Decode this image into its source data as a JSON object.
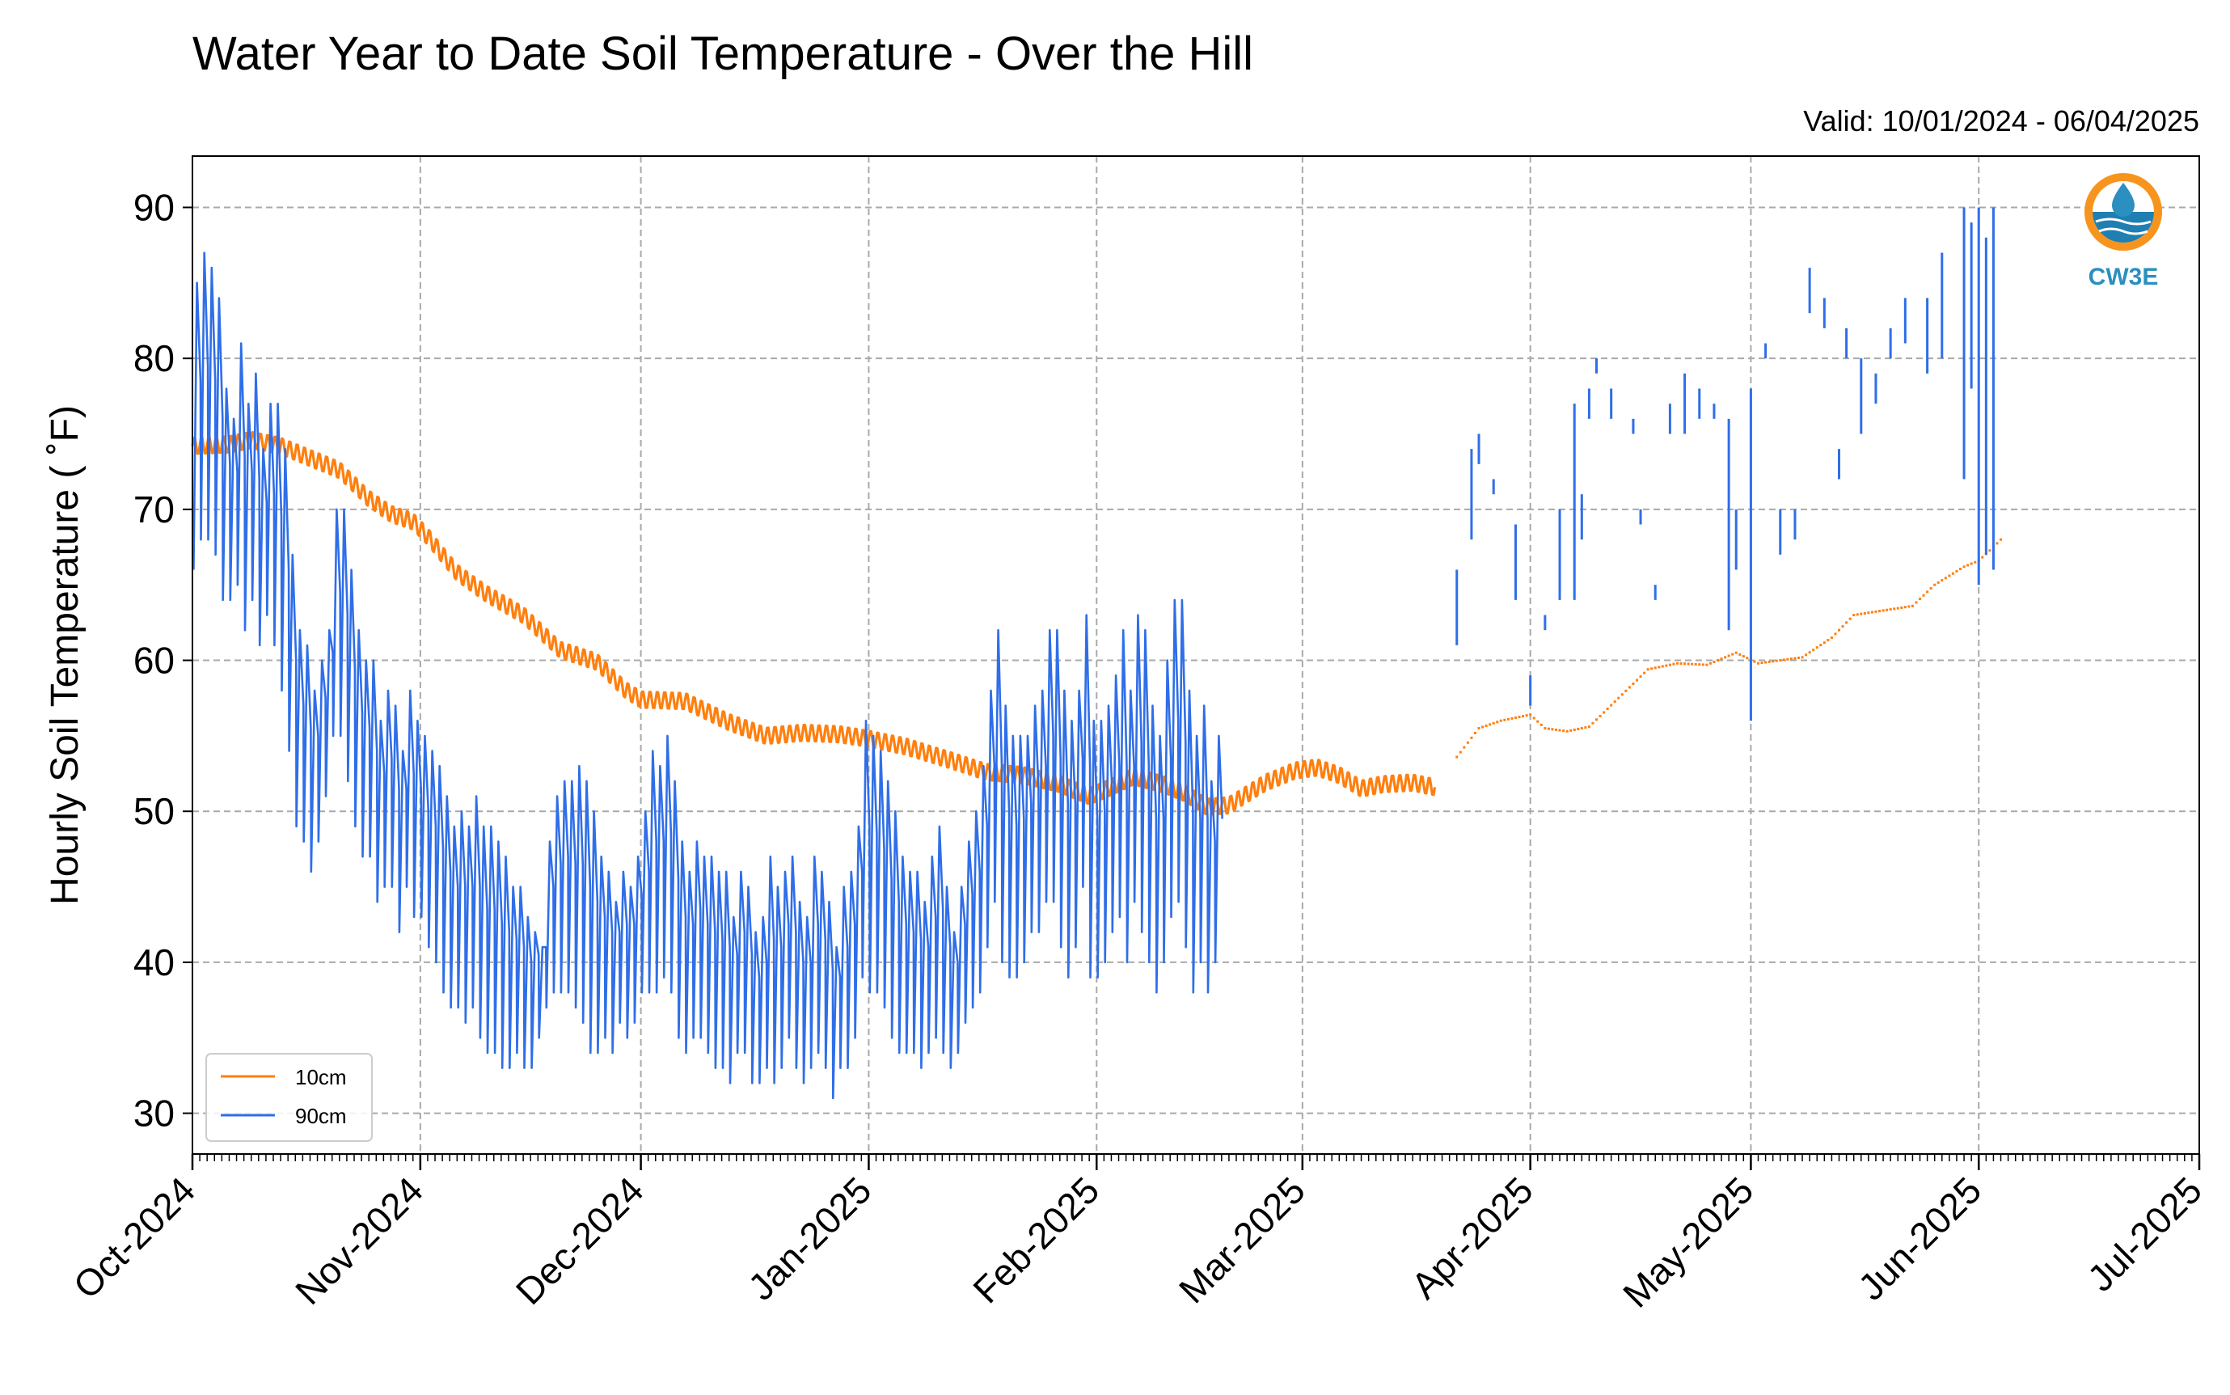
{
  "chart_data": {
    "type": "line",
    "title": "Water Year to Date Soil Temperature - Over the Hill",
    "subtitle": "Valid: 10/01/2024 - 06/04/2025",
    "ylabel": "Hourly Soil Temperature ( $^\\circ$F)",
    "ylabel_display": "Hourly Soil Temperature ( ˚F)",
    "xlabel": "",
    "ylim": [
      27.3,
      93.4
    ],
    "yticks": [
      30,
      40,
      50,
      60,
      70,
      80,
      90
    ],
    "xlim": [
      "2024-10-01",
      "2025-07-01"
    ],
    "xticks": [
      "2024-10-01",
      "2024-11-01",
      "2024-12-01",
      "2025-01-01",
      "2025-02-01",
      "2025-03-01",
      "2025-04-01",
      "2025-05-01",
      "2025-06-01",
      "2025-07-01"
    ],
    "xtick_labels": [
      "Oct-2024",
      "Nov-2024",
      "Dec-2024",
      "Jan-2025",
      "Feb-2025",
      "Mar-2025",
      "Apr-2025",
      "May-2025",
      "Jun-2025",
      "Jul-2025"
    ],
    "grid": true,
    "legend_position": "lower-left",
    "series": [
      {
        "name": "10cm",
        "color": "#ff7f0e",
        "style": "daily-mean-with-diurnal-swing",
        "swing_f": 0.6,
        "points": [
          [
            "2024-10-01",
            74.2
          ],
          [
            "2024-10-06",
            74.3
          ],
          [
            "2024-10-09",
            74.6
          ],
          [
            "2024-10-13",
            74.2
          ],
          [
            "2024-10-16",
            73.6
          ],
          [
            "2024-10-21",
            72.6
          ],
          [
            "2024-10-25",
            70.7
          ],
          [
            "2024-10-28",
            69.7
          ],
          [
            "2024-10-31",
            69.2
          ],
          [
            "2024-11-02",
            68.2
          ],
          [
            "2024-11-06",
            65.8
          ],
          [
            "2024-11-10",
            64.4
          ],
          [
            "2024-11-15",
            63.0
          ],
          [
            "2024-11-20",
            60.7
          ],
          [
            "2024-11-25",
            59.9
          ],
          [
            "2024-11-29",
            58.0
          ],
          [
            "2024-12-01",
            57.4
          ],
          [
            "2024-12-07",
            57.3
          ],
          [
            "2024-12-13",
            55.9
          ],
          [
            "2024-12-18",
            55.0
          ],
          [
            "2024-12-23",
            55.2
          ],
          [
            "2024-12-28",
            55.1
          ],
          [
            "2025-01-01",
            54.8
          ],
          [
            "2025-01-06",
            54.3
          ],
          [
            "2025-01-12",
            53.4
          ],
          [
            "2025-01-17",
            52.6
          ],
          [
            "2025-01-22",
            52.4
          ],
          [
            "2025-01-27",
            51.8
          ],
          [
            "2025-01-31",
            51.0
          ],
          [
            "2025-02-03",
            51.6
          ],
          [
            "2025-02-06",
            52.3
          ],
          [
            "2025-02-10",
            51.8
          ],
          [
            "2025-02-13",
            51.2
          ],
          [
            "2025-02-16",
            50.3
          ],
          [
            "2025-02-19",
            50.4
          ],
          [
            "2025-02-24",
            51.9
          ],
          [
            "2025-02-28",
            52.7
          ],
          [
            "2025-03-03",
            52.9
          ],
          [
            "2025-03-06",
            52.4
          ],
          [
            "2025-03-09",
            51.5
          ],
          [
            "2025-03-12",
            51.8
          ],
          [
            "2025-03-16",
            51.9
          ],
          [
            "2025-03-19",
            51.6
          ]
        ],
        "points_sparse": [
          [
            "2025-03-22",
            53.6
          ],
          [
            "2025-03-25",
            55.5
          ],
          [
            "2025-03-28",
            56.0
          ],
          [
            "2025-04-01",
            56.4
          ],
          [
            "2025-04-03",
            55.5
          ],
          [
            "2025-04-06",
            55.3
          ],
          [
            "2025-04-09",
            55.6
          ],
          [
            "2025-04-13",
            57.5
          ],
          [
            "2025-04-17",
            59.4
          ],
          [
            "2025-04-21",
            59.8
          ],
          [
            "2025-04-25",
            59.7
          ],
          [
            "2025-04-29",
            60.5
          ],
          [
            "2025-05-02",
            59.8
          ],
          [
            "2025-05-05",
            60.0
          ],
          [
            "2025-05-08",
            60.2
          ],
          [
            "2025-05-12",
            61.5
          ],
          [
            "2025-05-15",
            63.0
          ],
          [
            "2025-05-19",
            63.3
          ],
          [
            "2025-05-23",
            63.6
          ],
          [
            "2025-05-26",
            65.0
          ],
          [
            "2025-05-30",
            66.2
          ],
          [
            "2025-06-01",
            66.6
          ],
          [
            "2025-06-03",
            67.5
          ],
          [
            "2025-06-04",
            68.0
          ]
        ]
      },
      {
        "name": "90cm",
        "color": "#2f6ee8",
        "style": "diurnal-cycle",
        "daily_peaks": [
          85,
          87,
          86,
          84,
          78,
          76,
          81,
          77,
          79,
          74,
          77,
          77,
          74,
          67,
          62,
          61,
          58,
          60,
          62,
          70,
          70,
          66,
          62,
          60,
          60,
          56,
          58,
          57,
          54,
          58,
          56,
          55,
          54,
          53,
          51,
          49,
          50,
          49,
          51,
          49,
          49,
          48,
          47,
          45,
          45,
          43,
          42,
          41,
          48,
          51,
          52,
          52,
          53,
          52,
          50,
          47,
          46,
          44,
          46,
          45,
          47,
          50,
          54,
          53,
          55,
          52,
          48,
          46,
          48,
          47,
          47,
          46,
          46,
          43,
          46,
          45,
          42,
          43,
          47,
          45,
          46,
          47,
          44,
          43,
          47,
          46,
          44,
          41,
          45,
          46,
          49,
          56,
          55,
          54,
          52,
          50,
          47,
          46,
          46,
          44,
          47,
          49,
          45,
          42,
          45,
          48,
          50,
          53,
          58,
          62,
          57,
          55,
          55,
          55,
          57,
          58,
          62,
          62,
          58,
          56,
          58,
          63,
          56,
          56,
          57,
          59,
          62,
          58,
          63,
          62,
          57,
          55,
          60,
          64,
          64,
          58,
          55,
          57,
          52,
          55
        ],
        "daily_troughs": [
          66,
          68,
          68,
          67,
          64,
          64,
          65,
          62,
          64,
          61,
          63,
          61,
          58,
          54,
          49,
          48,
          46,
          48,
          51,
          55,
          55,
          52,
          49,
          47,
          47,
          44,
          45,
          45,
          42,
          45,
          43,
          43,
          41,
          40,
          38,
          37,
          37,
          36,
          37,
          35,
          34,
          34,
          33,
          33,
          34,
          33,
          33,
          35,
          37,
          38,
          38,
          38,
          37,
          36,
          34,
          34,
          35,
          34,
          36,
          35,
          36,
          38,
          38,
          38,
          39,
          38,
          35,
          34,
          35,
          35,
          34,
          33,
          33,
          32,
          34,
          34,
          32,
          32,
          33,
          32,
          33,
          35,
          33,
          32,
          33,
          34,
          33,
          31,
          33,
          33,
          35,
          39,
          38,
          38,
          37,
          35,
          34,
          34,
          34,
          33,
          34,
          35,
          34,
          33,
          34,
          36,
          37,
          38,
          41,
          44,
          40,
          39,
          39,
          40,
          42,
          42,
          44,
          44,
          41,
          39,
          41,
          45,
          39,
          39,
          40,
          42,
          43,
          40,
          44,
          42,
          40,
          38,
          40,
          43,
          44,
          41,
          38,
          40,
          38,
          40
        ],
        "sparse_segments": [
          [
            "2025-03-22",
            61,
            66
          ],
          [
            "2025-03-24",
            68,
            74
          ],
          [
            "2025-03-25",
            73,
            75
          ],
          [
            "2025-03-27",
            71,
            72
          ],
          [
            "2025-03-30",
            64,
            69
          ],
          [
            "2025-04-01",
            57,
            59
          ],
          [
            "2025-04-03",
            62,
            63
          ],
          [
            "2025-04-05",
            64,
            70
          ],
          [
            "2025-04-07",
            64,
            77
          ],
          [
            "2025-04-08",
            68,
            71
          ],
          [
            "2025-04-09",
            76,
            78
          ],
          [
            "2025-04-10",
            79,
            80
          ],
          [
            "2025-04-12",
            76,
            78
          ],
          [
            "2025-04-15",
            75,
            76
          ],
          [
            "2025-04-16",
            69,
            70
          ],
          [
            "2025-04-18",
            64,
            65
          ],
          [
            "2025-04-20",
            75,
            77
          ],
          [
            "2025-04-22",
            75,
            79
          ],
          [
            "2025-04-24",
            76,
            78
          ],
          [
            "2025-04-26",
            76,
            77
          ],
          [
            "2025-04-28",
            62,
            76
          ],
          [
            "2025-04-29",
            66,
            70
          ],
          [
            "2025-05-01",
            56,
            78
          ],
          [
            "2025-05-03",
            80,
            81
          ],
          [
            "2025-05-05",
            67,
            70
          ],
          [
            "2025-05-07",
            68,
            70
          ],
          [
            "2025-05-09",
            83,
            86
          ],
          [
            "2025-05-11",
            82,
            84
          ],
          [
            "2025-05-13",
            72,
            74
          ],
          [
            "2025-05-14",
            80,
            82
          ],
          [
            "2025-05-16",
            75,
            80
          ],
          [
            "2025-05-18",
            77,
            79
          ],
          [
            "2025-05-20",
            80,
            82
          ],
          [
            "2025-05-22",
            81,
            84
          ],
          [
            "2025-05-25",
            79,
            84
          ],
          [
            "2025-05-27",
            80,
            87
          ],
          [
            "2025-05-30",
            72,
            90
          ],
          [
            "2025-05-31",
            78,
            89
          ],
          [
            "2025-06-01",
            65,
            90
          ],
          [
            "2025-06-02",
            67,
            88
          ],
          [
            "2025-06-03",
            66,
            90
          ]
        ]
      }
    ],
    "logo_text": "CW3E"
  }
}
